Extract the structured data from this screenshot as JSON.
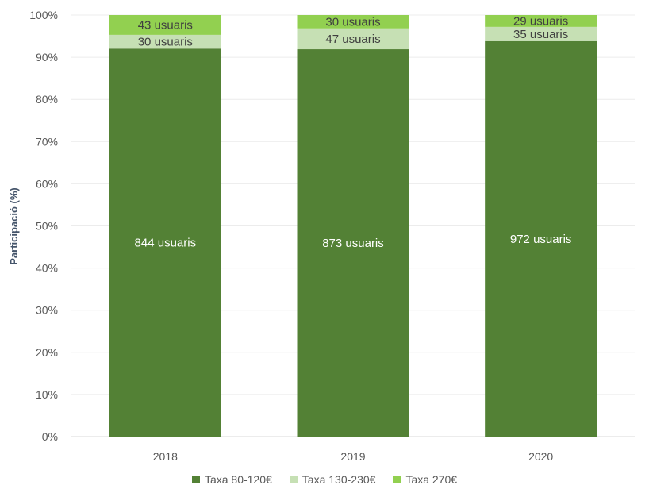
{
  "chart_data": {
    "type": "bar",
    "stacked": true,
    "normalized": true,
    "ylabel": "Participació (%)",
    "xlabel": "",
    "ylim": [
      0,
      100
    ],
    "yticks": [
      "0%",
      "10%",
      "20%",
      "30%",
      "40%",
      "50%",
      "60%",
      "70%",
      "80%",
      "90%",
      "100%"
    ],
    "grid": true,
    "legend_position": "bottom",
    "categories": [
      "2018",
      "2019",
      "2020"
    ],
    "series": [
      {
        "name": "Taxa 80-120€",
        "color": "#538135",
        "label_color": "#ffffff",
        "values": [
          844,
          873,
          972
        ],
        "labels": [
          "844 usuaris",
          "873 usuaris",
          "972 usuaris"
        ]
      },
      {
        "name": "Taxa 130-230€",
        "color": "#c6e0b4",
        "label_color": "#404040",
        "values": [
          30,
          47,
          35
        ],
        "labels": [
          "30 usuaris",
          "47 usuaris",
          "35 usuaris"
        ]
      },
      {
        "name": "Taxa 270€",
        "color": "#92d050",
        "label_color": "#404040",
        "values": [
          43,
          30,
          29
        ],
        "labels": [
          "43 usuaris",
          "30 usuaris",
          "29 usuaris"
        ]
      }
    ]
  }
}
